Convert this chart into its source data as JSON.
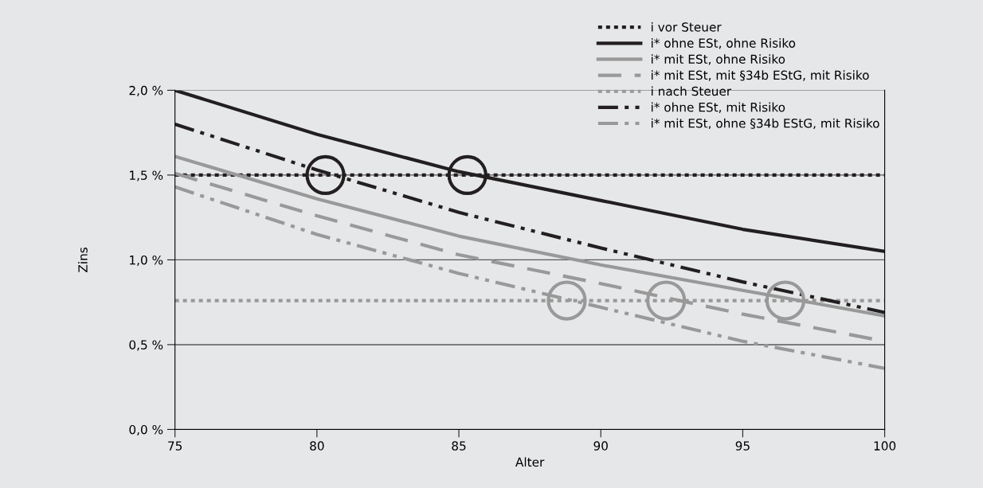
{
  "chart_data": {
    "type": "line",
    "xlabel": "Alter",
    "ylabel": "Zins",
    "xlim": [
      75,
      100
    ],
    "xticks": [
      75,
      80,
      85,
      90,
      95,
      100
    ],
    "ylim": [
      0,
      2.0
    ],
    "yticks": [
      {
        "value": 0,
        "label": "0,0 %"
      },
      {
        "value": 0.5,
        "label": "0,5 %"
      },
      {
        "value": 1.0,
        "label": "1,0 %"
      },
      {
        "value": 1.5,
        "label": "1,5 %"
      },
      {
        "value": 2.0,
        "label": "2,0 %"
      }
    ],
    "grid": "y",
    "legend": "top right",
    "series": [
      {
        "name": "i vor Steuer",
        "color": "#231f20",
        "line_style": "dotted",
        "x": [
          75,
          100
        ],
        "values": [
          1.5,
          1.5
        ]
      },
      {
        "name": "i* ohne ESt, ohne Risiko",
        "color": "#231f20",
        "line_style": "solid",
        "x": [
          75,
          80,
          85,
          90,
          95,
          100
        ],
        "values": [
          2.0,
          1.74,
          1.52,
          1.35,
          1.18,
          1.05
        ]
      },
      {
        "name": "i* mit ESt, ohne Risiko",
        "color": "#999999",
        "line_style": "solid",
        "x": [
          75,
          80,
          85,
          90,
          95,
          100
        ],
        "values": [
          1.61,
          1.36,
          1.14,
          0.97,
          0.82,
          0.67
        ]
      },
      {
        "name": "i* mit ESt, mit §34b EStG, mit Risiko",
        "color": "#999999",
        "line_style": "dashed",
        "x": [
          75,
          80,
          85,
          90,
          95,
          100
        ],
        "values": [
          1.51,
          1.26,
          1.03,
          0.86,
          0.68,
          0.52
        ]
      },
      {
        "name": "i nach Steuer",
        "color": "#999999",
        "line_style": "dotted",
        "x": [
          75,
          100
        ],
        "values": [
          0.76,
          0.76
        ]
      },
      {
        "name": "i* ohne ESt, mit Risiko",
        "color": "#231f20",
        "line_style": "dashdotdot",
        "x": [
          75,
          80,
          85,
          90,
          95,
          100
        ],
        "values": [
          1.8,
          1.53,
          1.28,
          1.07,
          0.87,
          0.69
        ]
      },
      {
        "name": "i* mit ESt, ohne §34b EStG, mit Risiko",
        "color": "#999999",
        "line_style": "dashdotdot",
        "x": [
          75,
          80,
          85,
          90,
          95,
          100
        ],
        "values": [
          1.43,
          1.15,
          0.92,
          0.72,
          0.52,
          0.36
        ]
      },
      {
        "type": "scatter",
        "marker": "circle",
        "color": "#231f20",
        "x": [
          80.3,
          85.3
        ],
        "values": [
          1.5,
          1.5
        ]
      },
      {
        "type": "scatter",
        "marker": "circle",
        "color": "#999999",
        "x": [
          88.8,
          92.3,
          96.5
        ],
        "values": [
          0.76,
          0.76,
          0.76
        ]
      }
    ]
  }
}
